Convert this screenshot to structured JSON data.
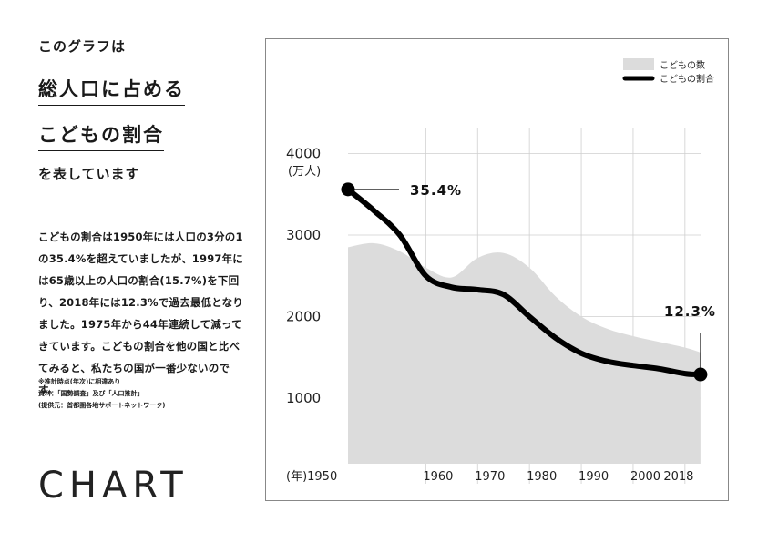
{
  "intro": {
    "lead": "このグラフは",
    "title_line1": "総人口に占める",
    "title_line2": "こどもの割合",
    "tail": "を表しています"
  },
  "description": "こどもの割合は1950年には人口の3分の1の35.4%を超えていましたが、1997年には65歳以上の人口の割合(15.7%)を下回り、2018年には12.3%で過去最低となりました。1975年から44年連続して減ってきています。こどもの割合を他の国と比べてみると、私たちの国が一番少ないのです。",
  "notes": {
    "note1": "※推計時点(年次)に相違あり",
    "note2": "資料：「国勢調査」及び「人口推計」",
    "note3": "(提供元：首都圏各地サポートネットワーク)"
  },
  "logo": "CHART",
  "chart_data": {
    "type": "area",
    "legend": {
      "position": "top-right",
      "items": [
        "こどもの数",
        "こどもの割合"
      ]
    },
    "colors": {
      "area": "#dcdcdc",
      "line": "#000000"
    },
    "y_axis": {
      "ticks": [
        "4000",
        "3000",
        "2000",
        "1000"
      ],
      "tick_values": [
        4000,
        3000,
        2000,
        1000
      ],
      "unit": "(万人)",
      "range": [
        0,
        4400
      ]
    },
    "x_axis": {
      "ticks": [
        "(年)1950",
        "1960",
        "1970",
        "1980",
        "1990",
        "2000",
        "2018"
      ],
      "tick_years": [
        1950,
        1960,
        1970,
        1980,
        1990,
        2000,
        2018
      ],
      "range": [
        1950,
        2020
      ]
    },
    "grid": true,
    "series": [
      {
        "name": "こどもの数",
        "kind": "area",
        "x": [
          1950,
          1955,
          1960,
          1965,
          1970,
          1975,
          1980,
          1985,
          1990,
          1995,
          2000,
          2005,
          2010,
          2015,
          2018
        ],
        "y": [
          2850,
          2900,
          2800,
          2600,
          2480,
          2720,
          2780,
          2600,
          2250,
          2000,
          1850,
          1760,
          1690,
          1620,
          1560
        ]
      },
      {
        "name": "こどもの割合",
        "kind": "line",
        "x": [
          1950,
          1955,
          1960,
          1965,
          1970,
          1975,
          1980,
          1985,
          1990,
          1995,
          2000,
          2005,
          2010,
          2015,
          2018
        ],
        "y": [
          3560,
          3300,
          3000,
          2500,
          2360,
          2330,
          2270,
          2000,
          1740,
          1550,
          1450,
          1400,
          1360,
          1300,
          1290
        ]
      }
    ],
    "annotations": [
      {
        "label": "35.4%",
        "year": 1950,
        "value": 3560
      },
      {
        "label": "12.3%",
        "year": 2018,
        "value": 1290
      }
    ]
  }
}
